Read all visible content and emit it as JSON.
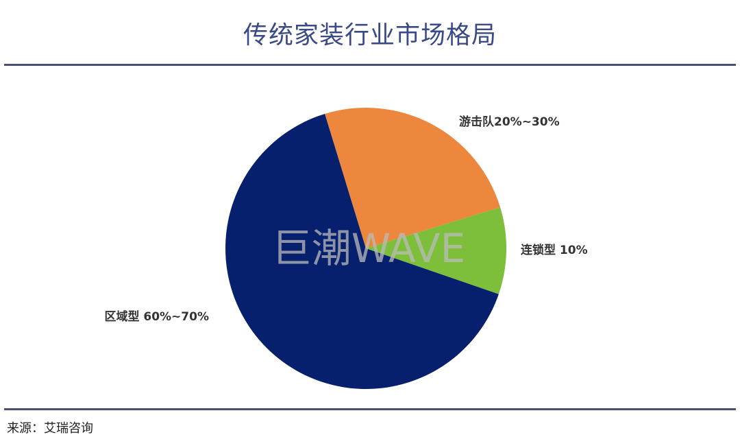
{
  "chart_data": {
    "type": "pie",
    "title": "传统家装行业市场格局",
    "slices": [
      {
        "label": "游击队20%~30%",
        "value": 25,
        "color": "#ec873d"
      },
      {
        "label": "连锁型 10%",
        "value": 10,
        "color": "#7dbe3a"
      },
      {
        "label": "区域型  60%~70%",
        "value": 65,
        "color": "#06206e"
      }
    ],
    "start_angle_deg": -17,
    "direction": "clockwise"
  },
  "watermark": "巨潮WAVE",
  "source": "来源：艾瑞咨询"
}
